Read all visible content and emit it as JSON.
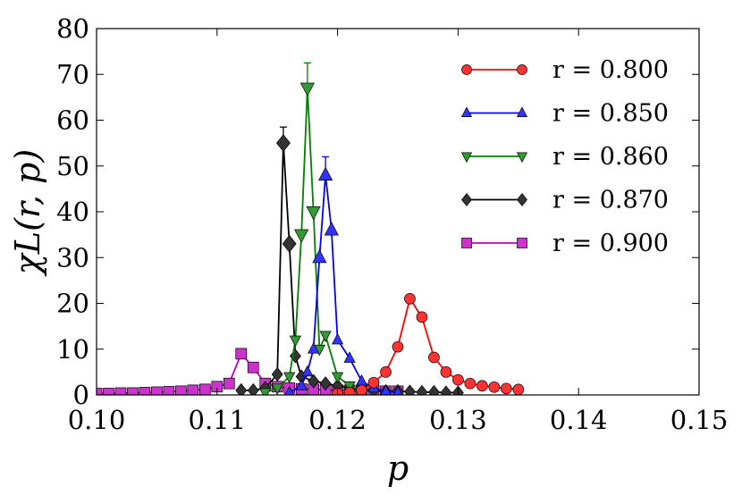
{
  "chart_data": {
    "type": "line",
    "xlabel": "p",
    "ylabel": "χL(r, p)",
    "xlim": [
      0.1,
      0.15
    ],
    "ylim": [
      0,
      80
    ],
    "xticks": [
      "0.10",
      "0.11",
      "0.12",
      "0.13",
      "0.14",
      "0.15"
    ],
    "yticks": [
      "0",
      "10",
      "20",
      "30",
      "40",
      "50",
      "60",
      "70",
      "80"
    ],
    "grid": false,
    "legend_position": "top-right",
    "series": [
      {
        "name": "r = 0.800",
        "color": "#ff0000",
        "marker": "circle",
        "x": [
          0.12,
          0.121,
          0.122,
          0.123,
          0.124,
          0.125,
          0.126,
          0.127,
          0.128,
          0.129,
          0.13,
          0.131,
          0.132,
          0.133,
          0.134,
          0.135
        ],
        "y": [
          0.3,
          0.5,
          1.0,
          2.7,
          5.0,
          10.5,
          21.0,
          17.0,
          8.2,
          5.0,
          3.3,
          2.5,
          2.0,
          1.7,
          1.4,
          1.2
        ]
      },
      {
        "name": "r = 0.850",
        "color": "#0000ff",
        "marker": "triangle-up",
        "x": [
          0.116,
          0.117,
          0.1175,
          0.118,
          0.1185,
          0.119,
          0.1195,
          0.12,
          0.121,
          0.122,
          0.123,
          0.124,
          0.125
        ],
        "y": [
          0.5,
          2.0,
          5.0,
          10.0,
          30.0,
          48.0,
          36.0,
          12.0,
          8.0,
          3.0,
          1.5,
          0.8,
          0.5
        ],
        "error_max_y": [
          null,
          null,
          null,
          null,
          null,
          52.0,
          null,
          null,
          null,
          null,
          null,
          null,
          null
        ]
      },
      {
        "name": "r = 0.860",
        "color": "#008000",
        "marker": "triangle-down",
        "x": [
          0.114,
          0.115,
          0.116,
          0.1165,
          0.117,
          0.1175,
          0.118,
          0.1185,
          0.119,
          0.12,
          0.121,
          0.122
        ],
        "y": [
          0.5,
          1.5,
          4.0,
          12.0,
          35.0,
          67.0,
          40.0,
          10.0,
          13.0,
          4.0,
          2.0,
          1.0
        ],
        "error_max_y": [
          null,
          null,
          null,
          null,
          null,
          72.5,
          null,
          null,
          null,
          null,
          null,
          null
        ]
      },
      {
        "name": "r = 0.870",
        "color": "#000000",
        "marker": "diamond",
        "x": [
          0.112,
          0.113,
          0.114,
          0.115,
          0.1155,
          0.116,
          0.1165,
          0.117,
          0.118,
          0.119,
          0.12,
          0.121,
          0.122,
          0.123,
          0.124,
          0.125,
          0.126,
          0.127,
          0.128,
          0.129,
          0.13
        ],
        "y": [
          1.0,
          1.0,
          1.5,
          4.5,
          55.0,
          33.0,
          8.5,
          4.0,
          3.0,
          2.5,
          2.0,
          1.5,
          1.2,
          1.0,
          0.8,
          0.8,
          0.7,
          0.6,
          0.6,
          0.5,
          0.5
        ],
        "error_max_y": [
          null,
          null,
          null,
          null,
          58.5,
          null,
          null,
          null,
          null,
          null,
          null,
          null,
          null,
          null,
          null,
          null,
          null,
          null,
          null,
          null,
          null
        ]
      },
      {
        "name": "r = 0.900",
        "color": "#bf00bf",
        "marker": "square",
        "x": [
          0.1,
          0.101,
          0.102,
          0.103,
          0.104,
          0.105,
          0.106,
          0.107,
          0.108,
          0.109,
          0.11,
          0.111,
          0.112,
          0.113,
          0.114,
          0.115,
          0.116,
          0.117,
          0.118,
          0.119,
          0.12,
          0.121,
          0.122,
          0.123,
          0.124,
          0.125
        ],
        "y": [
          0.3,
          0.3,
          0.4,
          0.4,
          0.5,
          0.6,
          0.7,
          0.8,
          1.0,
          1.2,
          1.8,
          2.5,
          9.0,
          6.0,
          2.5,
          1.8,
          1.5,
          1.3,
          1.2,
          1.1,
          1.0,
          1.0,
          0.9,
          0.9,
          0.8,
          0.8
        ]
      }
    ]
  }
}
